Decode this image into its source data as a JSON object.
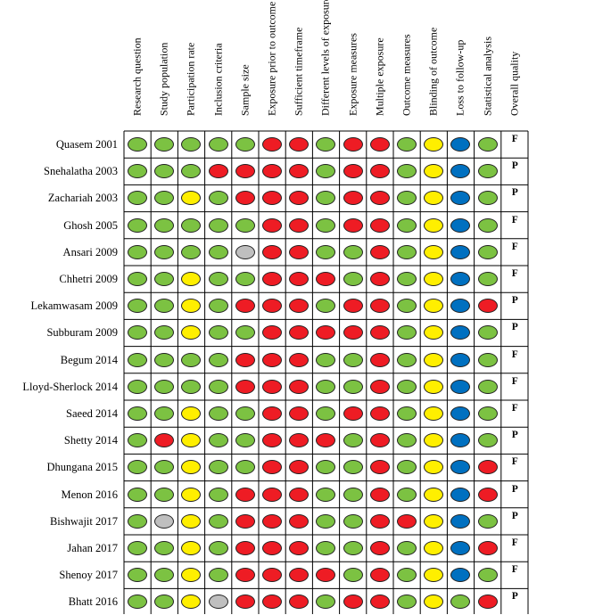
{
  "colors": {
    "G": "#7cc242",
    "R": "#ee1c24",
    "Y": "#ffef00",
    "B": "#0070c0",
    "X": "#bfbfbf"
  },
  "columns": [
    "Research question",
    "Study population",
    "Participation rate",
    "Inclusion criteria",
    "Sample size",
    "Exposure prior to outcome",
    "Sufficient timeframe",
    "Different levels of exposure",
    "Exposure measures",
    "Multiple exposure",
    "Outcome measures",
    "Blinding of outcome",
    "Loss to follow-up",
    "Statistical analysis",
    "Overall quality"
  ],
  "rows": [
    {
      "study": "Quasem 2001",
      "ratings": "GGGGGRRGRRGYBG",
      "quality": "F"
    },
    {
      "study": "Snehalatha 2003",
      "ratings": "GGGRRRRGRRGYBG",
      "quality": "P"
    },
    {
      "study": "Zachariah 2003",
      "ratings": "GGYGRRRGRRGYBG",
      "quality": "P"
    },
    {
      "study": "Ghosh 2005",
      "ratings": "GGGGGRRGRRGYBG",
      "quality": "F"
    },
    {
      "study": "Ansari 2009",
      "ratings": "GGGGXRRGGRGYBG",
      "quality": "F"
    },
    {
      "study": "Chhetri 2009",
      "ratings": "GGYGGRRRGRGYBG",
      "quality": "F"
    },
    {
      "study": "Lekamwasam 2009",
      "ratings": "GGYGRRRGRRGYBR",
      "quality": "P"
    },
    {
      "study": "Subburam 2009",
      "ratings": "GGYGGRRRRRGYBG",
      "quality": "P"
    },
    {
      "study": "Begum 2014",
      "ratings": "GGGGRRRGGRGYBG",
      "quality": "F"
    },
    {
      "study": "Lloyd-Sherlock 2014",
      "ratings": "GGGGRRRGGRGYBG",
      "quality": "F"
    },
    {
      "study": "Saeed 2014",
      "ratings": "GGYGGRRGRRGYBG",
      "quality": "F"
    },
    {
      "study": "Shetty 2014",
      "ratings": "GRYGGRRRGRGYBG",
      "quality": "P"
    },
    {
      "study": "Dhungana 2015",
      "ratings": "GGYGGRRGGRGYBR",
      "quality": "F"
    },
    {
      "study": "Menon 2016",
      "ratings": "GGYGRRRGGRGYBR",
      "quality": "P"
    },
    {
      "study": "Bishwajit 2017",
      "ratings": "GXYGRRRGGRRYBG",
      "quality": "P"
    },
    {
      "study": "Jahan 2017",
      "ratings": "GGYGRRRGGRGYBR",
      "quality": "F"
    },
    {
      "study": "Shenoy 2017",
      "ratings": "GGYGRRRRGRGYBG",
      "quality": "F"
    },
    {
      "study": "Bhatt 2016",
      "ratings": "GGYXRRRGRRGYGR",
      "quality": "P"
    }
  ]
}
